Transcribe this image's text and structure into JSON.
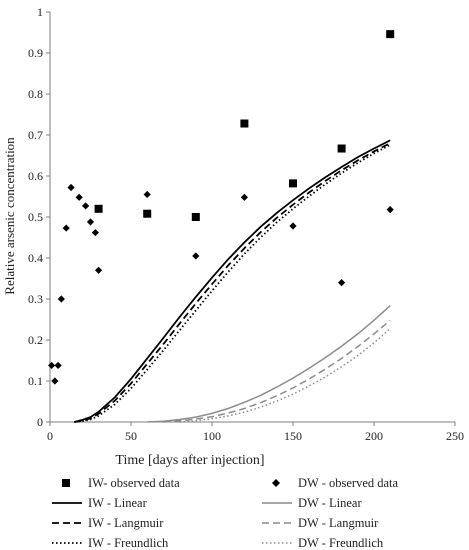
{
  "chart_data": {
    "type": "scatter",
    "xlabel": "Time [days after injection]",
    "ylabel": "Relative arsenic concentration",
    "xlim": [
      0,
      250
    ],
    "ylim": [
      0,
      1
    ],
    "xticks": [
      0,
      50,
      100,
      150,
      200,
      250
    ],
    "yticks": [
      0,
      0.1,
      0.2,
      0.3,
      0.4,
      0.5,
      0.6,
      0.7,
      0.8,
      0.9,
      1
    ],
    "grid": false,
    "legend_position": "bottom",
    "series": [
      {
        "name": "IW- observed data",
        "kind": "scatter",
        "marker": "square",
        "color": "#000000",
        "x": [
          30,
          60,
          90,
          120,
          150,
          180,
          210
        ],
        "y": [
          0.52,
          0.508,
          0.5,
          0.728,
          0.582,
          0.667,
          0.946
        ]
      },
      {
        "name": "DW - observed data",
        "kind": "scatter",
        "marker": "diamond",
        "color": "#000000",
        "x": [
          1,
          3,
          5,
          7,
          10,
          13,
          18,
          22,
          25,
          28,
          30,
          60,
          90,
          120,
          150,
          180,
          210
        ],
        "y": [
          0.138,
          0.1,
          0.138,
          0.3,
          0.473,
          0.572,
          0.548,
          0.527,
          0.488,
          0.462,
          0.37,
          0.555,
          0.405,
          0.548,
          0.478,
          0.34,
          0.518
        ]
      },
      {
        "name": "IW - Linear",
        "kind": "line",
        "dash": "solid",
        "color": "#000000",
        "x": [
          15,
          20,
          25,
          30,
          40,
          50,
          60,
          70,
          80,
          90,
          100,
          110,
          120,
          130,
          140,
          150,
          160,
          170,
          180,
          190,
          200,
          210
        ],
        "y": [
          0,
          0.005,
          0.012,
          0.025,
          0.06,
          0.105,
          0.155,
          0.205,
          0.256,
          0.305,
          0.352,
          0.397,
          0.438,
          0.476,
          0.51,
          0.541,
          0.57,
          0.597,
          0.622,
          0.646,
          0.667,
          0.687
        ]
      },
      {
        "name": "IW - Langmuir",
        "kind": "line",
        "dash": "dashed",
        "color": "#000000",
        "x": [
          15,
          20,
          25,
          30,
          40,
          50,
          60,
          70,
          80,
          90,
          100,
          110,
          120,
          130,
          140,
          150,
          160,
          170,
          180,
          190,
          200,
          210
        ],
        "y": [
          0,
          0.003,
          0.009,
          0.02,
          0.052,
          0.094,
          0.142,
          0.19,
          0.24,
          0.289,
          0.336,
          0.382,
          0.424,
          0.463,
          0.498,
          0.53,
          0.56,
          0.588,
          0.614,
          0.638,
          0.66,
          0.68
        ]
      },
      {
        "name": "IW - Freundlich",
        "kind": "line",
        "dash": "dotted",
        "color": "#000000",
        "x": [
          15,
          20,
          25,
          30,
          40,
          50,
          60,
          70,
          80,
          90,
          100,
          110,
          120,
          130,
          140,
          150,
          160,
          170,
          180,
          190,
          200,
          210
        ],
        "y": [
          0,
          0.002,
          0.006,
          0.015,
          0.043,
          0.082,
          0.128,
          0.175,
          0.224,
          0.272,
          0.32,
          0.366,
          0.41,
          0.45,
          0.487,
          0.52,
          0.551,
          0.58,
          0.607,
          0.632,
          0.655,
          0.676
        ]
      },
      {
        "name": "DW - Linear",
        "kind": "line",
        "dash": "solid",
        "color": "#8c8c8c",
        "x": [
          60,
          70,
          80,
          90,
          100,
          110,
          120,
          130,
          140,
          150,
          160,
          170,
          180,
          190,
          200,
          210
        ],
        "y": [
          0,
          0.002,
          0.006,
          0.012,
          0.021,
          0.033,
          0.048,
          0.065,
          0.085,
          0.107,
          0.131,
          0.157,
          0.185,
          0.215,
          0.248,
          0.284
        ]
      },
      {
        "name": "DW - Langmuir",
        "kind": "line",
        "dash": "dashed",
        "color": "#8c8c8c",
        "x": [
          70,
          80,
          90,
          100,
          110,
          120,
          130,
          140,
          150,
          160,
          170,
          180,
          190,
          200,
          210
        ],
        "y": [
          0,
          0.003,
          0.007,
          0.013,
          0.022,
          0.033,
          0.047,
          0.064,
          0.083,
          0.105,
          0.129,
          0.155,
          0.184,
          0.215,
          0.248
        ]
      },
      {
        "name": "DW - Freundlich",
        "kind": "line",
        "dash": "dotted",
        "color": "#8c8c8c",
        "x": [
          80,
          90,
          100,
          110,
          120,
          130,
          140,
          150,
          160,
          170,
          180,
          190,
          200,
          210
        ],
        "y": [
          0,
          0.003,
          0.008,
          0.015,
          0.024,
          0.036,
          0.051,
          0.068,
          0.088,
          0.11,
          0.135,
          0.162,
          0.193,
          0.228
        ]
      }
    ]
  }
}
